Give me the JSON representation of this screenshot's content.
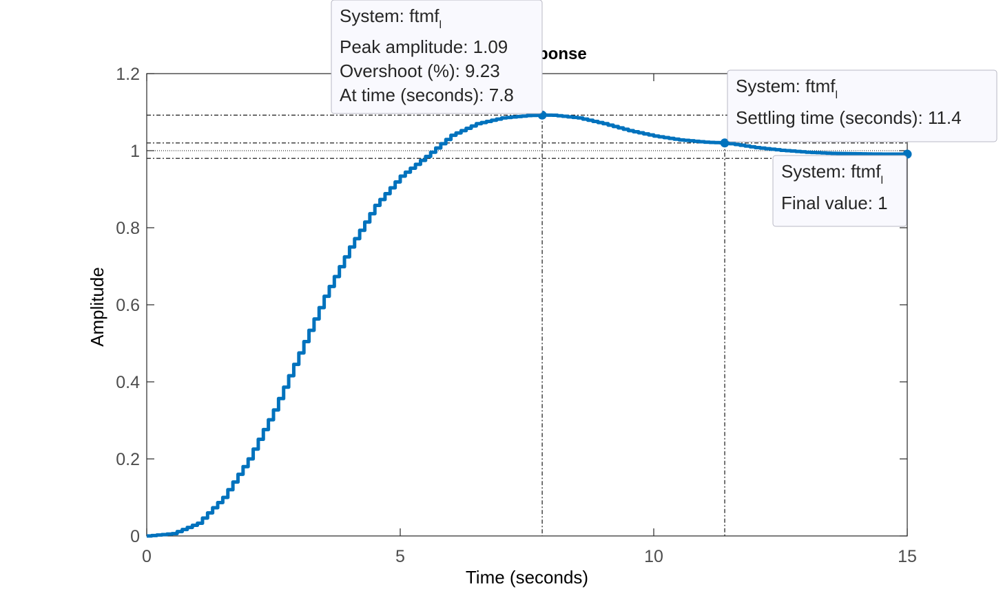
{
  "chart_data": {
    "type": "line",
    "title": "Step Response",
    "xlabel": "Time (seconds)",
    "ylabel": "Amplitude",
    "xlim": [
      0,
      15
    ],
    "ylim": [
      0,
      1.2
    ],
    "xticks": [
      0,
      5,
      10,
      15
    ],
    "yticks": [
      0,
      0.2,
      0.4,
      0.6,
      0.8,
      1,
      1.2
    ],
    "grid": false,
    "line_color": "#0072bd",
    "step_size": 0.1,
    "series": [
      {
        "x": [
          0,
          0.5,
          1,
          1.5,
          2,
          2.5,
          3,
          3.5,
          4,
          4.5,
          5,
          5.5,
          6,
          6.5,
          7,
          7.5,
          7.8,
          8,
          8.5,
          9,
          9.5,
          10,
          10.5,
          11,
          11.4,
          12,
          12.5,
          13,
          13.5,
          14,
          14.5,
          15
        ],
        "y": [
          0,
          0.006,
          0.033,
          0.1,
          0.2,
          0.327,
          0.475,
          0.622,
          0.75,
          0.858,
          0.934,
          0.985,
          1.04,
          1.07,
          1.085,
          1.091,
          1.0923,
          1.092,
          1.085,
          1.07,
          1.052,
          1.038,
          1.028,
          1.022,
          1.02,
          1.008,
          1.001,
          0.996,
          0.993,
          0.992,
          0.991,
          0.991
        ]
      }
    ],
    "annotations": [
      {
        "id": "peak",
        "point": [
          7.8,
          1.0923
        ],
        "system_prefix": "System: ftmf",
        "system_subscript": "l",
        "lines": [
          "Peak amplitude: 1.09",
          "Overshoot (%): 9.23",
          "At time (seconds): 7.8"
        ]
      },
      {
        "id": "settling",
        "point": [
          11.4,
          1.02
        ],
        "system_prefix": "System: ftmf",
        "system_subscript": "l",
        "lines": [
          "Settling time (seconds): 11.4"
        ]
      },
      {
        "id": "final",
        "point": [
          15,
          0.991
        ],
        "system_prefix": "System: ftmf",
        "system_subscript": "l",
        "lines": [
          "Final value: 1"
        ]
      }
    ],
    "reference_lines": {
      "settling_band": [
        0.98,
        1.02
      ],
      "final_value": 1,
      "peak_value": 1.0923
    }
  }
}
